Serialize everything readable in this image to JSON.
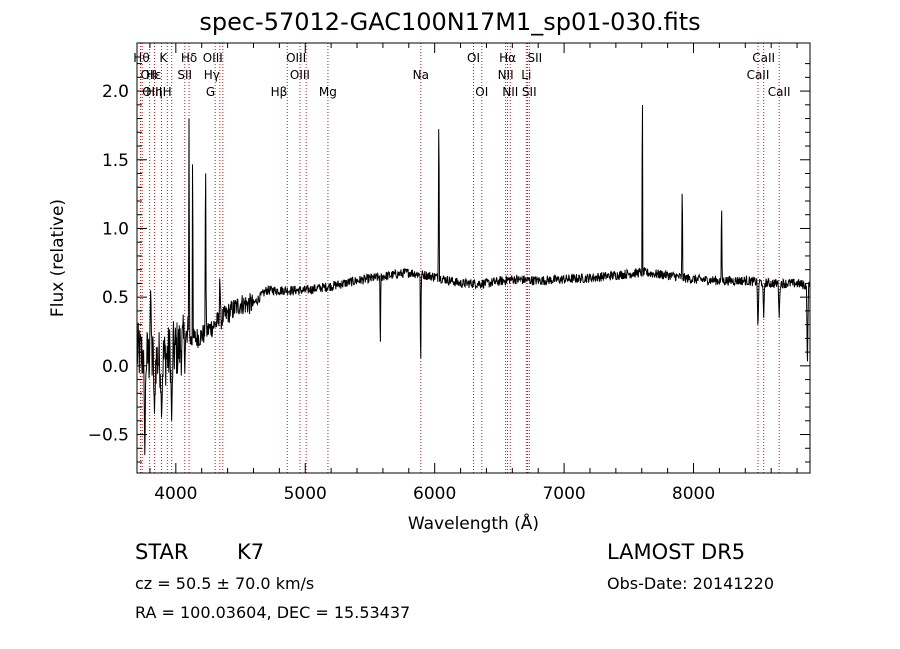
{
  "title": "spec-57012-GAC100N17M1_sp01-030.fits",
  "info": {
    "class_label": "STAR",
    "subclass": "K7",
    "redshift": "cz = 50.5 ± 70.0 km/s",
    "coords": "RA = 100.03604, DEC =  15.53437",
    "survey": "LAMOST DR5",
    "obs_date": "Obs-Date: 20141220"
  },
  "colors": {
    "line_marker": "#b22222",
    "spectrum": "#000000"
  },
  "chart_data": {
    "type": "line",
    "xlabel": "Wavelength (Å)",
    "ylabel": "Flux (relative)",
    "xlim": [
      3700,
      8900
    ],
    "ylim": [
      -0.78,
      2.35
    ],
    "xticks": [
      4000,
      5000,
      6000,
      7000,
      8000
    ],
    "yticks": [
      -0.5,
      0.0,
      0.5,
      1.0,
      1.5,
      2.0
    ],
    "ytick_labels": [
      "−0.5",
      "0.0",
      "0.5",
      "1.0",
      "1.5",
      "2.0"
    ],
    "grid": false,
    "spectrum_anchors": [
      [
        3700,
        0.1
      ],
      [
        3800,
        0.05
      ],
      [
        3900,
        0.05
      ],
      [
        4000,
        0.12
      ],
      [
        4100,
        0.18
      ],
      [
        4200,
        0.22
      ],
      [
        4300,
        0.3
      ],
      [
        4400,
        0.38
      ],
      [
        4500,
        0.45
      ],
      [
        4600,
        0.45
      ],
      [
        4700,
        0.55
      ],
      [
        4800,
        0.55
      ],
      [
        4900,
        0.55
      ],
      [
        5000,
        0.55
      ],
      [
        5200,
        0.58
      ],
      [
        5400,
        0.62
      ],
      [
        5600,
        0.65
      ],
      [
        5800,
        0.68
      ],
      [
        6000,
        0.65
      ],
      [
        6200,
        0.6
      ],
      [
        6400,
        0.6
      ],
      [
        6600,
        0.63
      ],
      [
        6800,
        0.62
      ],
      [
        7000,
        0.63
      ],
      [
        7200,
        0.64
      ],
      [
        7400,
        0.66
      ],
      [
        7600,
        0.68
      ],
      [
        7800,
        0.66
      ],
      [
        8000,
        0.63
      ],
      [
        8200,
        0.62
      ],
      [
        8400,
        0.62
      ],
      [
        8600,
        0.6
      ],
      [
        8800,
        0.6
      ],
      [
        8900,
        0.58
      ]
    ],
    "spectrum_features": [
      [
        3760,
        -0.65,
        10
      ],
      [
        3805,
        0.55,
        10
      ],
      [
        3835,
        -0.35,
        10
      ],
      [
        3890,
        -0.4,
        10
      ],
      [
        3968,
        -0.45,
        10
      ],
      [
        4102,
        1.8,
        5
      ],
      [
        4130,
        1.9,
        4
      ],
      [
        4230,
        1.7,
        5
      ],
      [
        4340,
        0.7,
        6
      ],
      [
        5580,
        0.05,
        5
      ],
      [
        5892,
        -0.1,
        5
      ],
      [
        6032,
        2.0,
        5
      ],
      [
        7605,
        2.3,
        4
      ],
      [
        7913,
        1.4,
        5
      ],
      [
        8217,
        1.25,
        5
      ],
      [
        8498,
        0.25,
        8
      ],
      [
        8542,
        0.35,
        8
      ],
      [
        8662,
        0.35,
        8
      ],
      [
        8880,
        -0.05,
        8
      ]
    ],
    "lines": [
      {
        "label": "Hθ",
        "x": 3798,
        "row": 0,
        "anchor": "end"
      },
      {
        "label": "OII",
        "x": 3727,
        "row": 1,
        "anchor": "start"
      },
      {
        "label": "OIII",
        "x": 3740,
        "row": 2,
        "anchor": "start"
      },
      {
        "label": "K",
        "x": 3934,
        "row": 0,
        "anchor": "end"
      },
      {
        "label": "Hε",
        "x": 3889,
        "row": 1,
        "anchor": "end"
      },
      {
        "label": "Hη",
        "x": 3835,
        "row": 2,
        "anchor": "middle"
      },
      {
        "label": "H",
        "x": 3968,
        "row": 2,
        "anchor": "end"
      },
      {
        "label": "Hδ",
        "x": 4102,
        "row": 0,
        "anchor": "middle"
      },
      {
        "label": "SII",
        "x": 4069,
        "row": 1,
        "anchor": "middle"
      },
      {
        "label": "OIII",
        "x": 4363,
        "row": 0,
        "anchor": "end"
      },
      {
        "label": "Hγ",
        "x": 4340,
        "row": 1,
        "anchor": "end"
      },
      {
        "label": "G",
        "x": 4304,
        "row": 2,
        "anchor": "end"
      },
      {
        "label": "Hβ",
        "x": 4861,
        "row": 2,
        "anchor": "end"
      },
      {
        "label": "OIII",
        "x": 5007,
        "row": 0,
        "anchor": "end"
      },
      {
        "label": "OIII",
        "x": 4959,
        "row": 1,
        "anchor": "middle"
      },
      {
        "label": "Mg",
        "x": 5175,
        "row": 2,
        "anchor": "middle"
      },
      {
        "label": "Na",
        "x": 5893,
        "row": 1,
        "anchor": "middle"
      },
      {
        "label": "OI",
        "x": 6300,
        "row": 0,
        "anchor": "middle"
      },
      {
        "label": "OI",
        "x": 6364,
        "row": 2,
        "anchor": "middle"
      },
      {
        "label": "Hα",
        "x": 6563,
        "row": 0,
        "anchor": "middle"
      },
      {
        "label": "NII",
        "x": 6548,
        "row": 1,
        "anchor": "middle"
      },
      {
        "label": "NII",
        "x": 6584,
        "row": 2,
        "anchor": "middle"
      },
      {
        "label": "SII",
        "x": 6717,
        "row": 0,
        "anchor": "start"
      },
      {
        "label": "Li",
        "x": 6708,
        "row": 1,
        "anchor": "middle"
      },
      {
        "label": "SII",
        "x": 6731,
        "row": 2,
        "anchor": "middle"
      },
      {
        "label": "CaII",
        "x": 8542,
        "row": 0,
        "anchor": "middle"
      },
      {
        "label": "CaII",
        "x": 8498,
        "row": 1,
        "anchor": "middle"
      },
      {
        "label": "CaII",
        "x": 8662,
        "row": 2,
        "anchor": "middle"
      }
    ]
  }
}
